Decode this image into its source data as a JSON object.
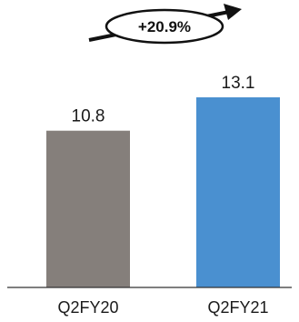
{
  "chart_data": {
    "type": "bar",
    "categories": [
      "Q2FY20",
      "Q2FY21"
    ],
    "values": [
      10.8,
      13.1
    ],
    "value_labels": [
      "10.8",
      "13.1"
    ],
    "colors": [
      "#857f7b",
      "#4a90d0"
    ],
    "ylim": [
      0,
      13.1
    ],
    "grid": false,
    "growth_callout": "+20.9%"
  }
}
